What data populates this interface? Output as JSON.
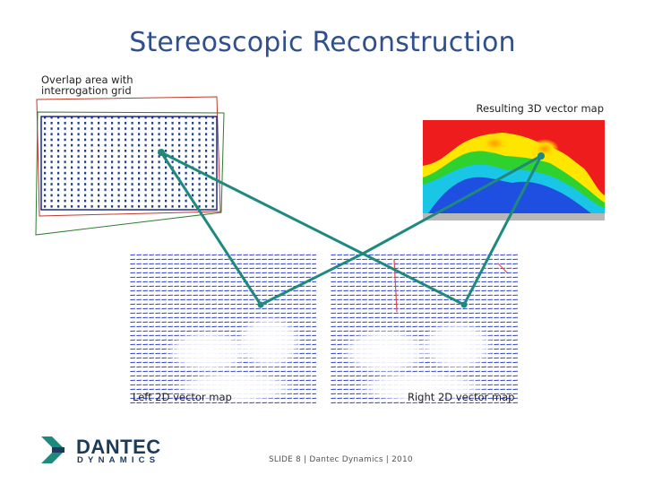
{
  "slide": {
    "title": "Stereoscopic Reconstruction",
    "overlap_label_line1": "Overlap area with",
    "overlap_label_line2": "interrogation grid",
    "result_label": "Resulting 3D vector map",
    "left_label": "Left 2D vector map",
    "right_label": "Right 2D vector map",
    "footer": "SLIDE 8  |  Dantec Dynamics  |  2010",
    "logo_word1": "DANTEC",
    "logo_word2": "DYNAMICS"
  },
  "colors": {
    "title": "#2f4f8f",
    "connector": "#1e8a7e",
    "logo": "#1b3a5c",
    "vector_blue": "#1f2fd0",
    "grid_dot": "#1c3a8a"
  }
}
